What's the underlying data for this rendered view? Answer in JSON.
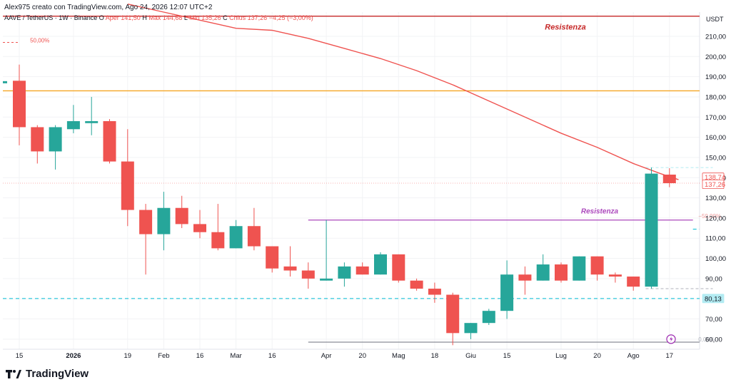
{
  "header": {
    "author_line": "Alex975 creato con TradingView.com, Ago 24, 2026 12:07 UTC+2",
    "symbol": "AAVE / TetherUS · 1W · Binance",
    "ohlc": [
      {
        "label": "O",
        "value": "Aper 141,50"
      },
      {
        "label": "H",
        "value": "Max 144,68"
      },
      {
        "label": "L",
        "value": "Min 135,26"
      },
      {
        "label": "C",
        "value": "Chius 137,26"
      },
      {
        "label": "",
        "value": "−4,25 (−3,00%)"
      }
    ]
  },
  "branding": {
    "logo_text": "TradingView"
  },
  "colors": {
    "up": "#26a69a",
    "down": "#ef5350",
    "ma": "#ef5350",
    "orange_level": "#f5a623",
    "resistance_red": "#c62828",
    "resistance_purple": "#ab47bc",
    "support_dash": "#00bcd4",
    "grid": "#f2f3f5"
  },
  "chart_data": {
    "type": "candlestick",
    "quote_currency": "USDT",
    "ylim": [
      55,
      222
    ],
    "y_ticks": [
      "60,00",
      "70,00",
      "80,00",
      "90,00",
      "100,00",
      "110,00",
      "120,00",
      "130,00",
      "140,00",
      "150,00",
      "160,00",
      "170,00",
      "180,00",
      "190,00",
      "200,00",
      "210,00"
    ],
    "y_ticks_values": [
      60,
      70,
      80,
      90,
      100,
      110,
      120,
      130,
      140,
      150,
      160,
      170,
      180,
      190,
      200,
      210
    ],
    "x_labels": [
      {
        "i": 0,
        "text": "15",
        "bold": false
      },
      {
        "i": 3,
        "text": "2026",
        "bold": true
      },
      {
        "i": 6,
        "text": "19",
        "bold": false
      },
      {
        "i": 8,
        "text": "Feb",
        "bold": false
      },
      {
        "i": 10,
        "text": "16",
        "bold": false
      },
      {
        "i": 12,
        "text": "Mar",
        "bold": false
      },
      {
        "i": 14,
        "text": "16",
        "bold": false
      },
      {
        "i": 17,
        "text": "Apr",
        "bold": false
      },
      {
        "i": 19,
        "text": "20",
        "bold": false
      },
      {
        "i": 21,
        "text": "Mag",
        "bold": false
      },
      {
        "i": 23,
        "text": "18",
        "bold": false
      },
      {
        "i": 25,
        "text": "Giu",
        "bold": false
      },
      {
        "i": 27,
        "text": "15",
        "bold": false
      },
      {
        "i": 30,
        "text": "Lug",
        "bold": false
      },
      {
        "i": 32,
        "text": "20",
        "bold": false
      },
      {
        "i": 34,
        "text": "Ago",
        "bold": false
      },
      {
        "i": 36,
        "text": "17",
        "bold": false
      }
    ],
    "candles": [
      {
        "o": 188,
        "h": 196,
        "l": 156,
        "c": 165
      },
      {
        "o": 165,
        "h": 166,
        "l": 147,
        "c": 153
      },
      {
        "o": 153,
        "h": 166,
        "l": 144,
        "c": 165
      },
      {
        "o": 164,
        "h": 176,
        "l": 162,
        "c": 168
      },
      {
        "o": 167,
        "h": 180,
        "l": 161,
        "c": 168
      },
      {
        "o": 168,
        "h": 169,
        "l": 147,
        "c": 148
      },
      {
        "o": 148,
        "h": 164,
        "l": 116,
        "c": 124
      },
      {
        "o": 124,
        "h": 127,
        "l": 92,
        "c": 112
      },
      {
        "o": 112,
        "h": 133,
        "l": 104,
        "c": 125
      },
      {
        "o": 125,
        "h": 131,
        "l": 115,
        "c": 117
      },
      {
        "o": 117,
        "h": 124,
        "l": 110,
        "c": 113
      },
      {
        "o": 113,
        "h": 127,
        "l": 104,
        "c": 105
      },
      {
        "o": 105,
        "h": 119,
        "l": 105,
        "c": 116
      },
      {
        "o": 116,
        "h": 125,
        "l": 104,
        "c": 106
      },
      {
        "o": 106,
        "h": 106,
        "l": 93,
        "c": 95
      },
      {
        "o": 96,
        "h": 106,
        "l": 91,
        "c": 94
      },
      {
        "o": 94,
        "h": 98,
        "l": 85,
        "c": 90
      },
      {
        "o": 89,
        "h": 119,
        "l": 89,
        "c": 90
      },
      {
        "o": 90,
        "h": 98,
        "l": 86,
        "c": 96
      },
      {
        "o": 96,
        "h": 98,
        "l": 92,
        "c": 92
      },
      {
        "o": 92,
        "h": 103,
        "l": 92,
        "c": 102
      },
      {
        "o": 102,
        "h": 102,
        "l": 88,
        "c": 89
      },
      {
        "o": 89,
        "h": 90,
        "l": 84,
        "c": 85
      },
      {
        "o": 85,
        "h": 88,
        "l": 78,
        "c": 82
      },
      {
        "o": 82,
        "h": 83,
        "l": 57,
        "c": 63
      },
      {
        "o": 63,
        "h": 68,
        "l": 60,
        "c": 68
      },
      {
        "o": 68,
        "h": 75,
        "l": 67,
        "c": 74
      },
      {
        "o": 74,
        "h": 99,
        "l": 70,
        "c": 92
      },
      {
        "o": 92,
        "h": 96,
        "l": 82,
        "c": 89
      },
      {
        "o": 89,
        "h": 102,
        "l": 89,
        "c": 97
      },
      {
        "o": 97,
        "h": 98,
        "l": 88,
        "c": 89
      },
      {
        "o": 89,
        "h": 101,
        "l": 89,
        "c": 101
      },
      {
        "o": 101,
        "h": 101,
        "l": 89,
        "c": 92
      },
      {
        "o": 92,
        "h": 93,
        "l": 88,
        "c": 91
      },
      {
        "o": 91,
        "h": 91,
        "l": 84,
        "c": 86
      },
      {
        "o": 86,
        "h": 145,
        "l": 85,
        "c": 142
      },
      {
        "o": 141.5,
        "h": 144.68,
        "l": 135.26,
        "c": 137.26
      }
    ],
    "moving_average": [
      {
        "i": 6,
        "v": 226
      },
      {
        "i": 8,
        "v": 222
      },
      {
        "i": 10,
        "v": 218
      },
      {
        "i": 12,
        "v": 214
      },
      {
        "i": 14,
        "v": 213
      },
      {
        "i": 16,
        "v": 209
      },
      {
        "i": 18,
        "v": 204
      },
      {
        "i": 20,
        "v": 199
      },
      {
        "i": 22,
        "v": 193
      },
      {
        "i": 24,
        "v": 186
      },
      {
        "i": 26,
        "v": 178
      },
      {
        "i": 28,
        "v": 170
      },
      {
        "i": 30,
        "v": 162
      },
      {
        "i": 32,
        "v": 155
      },
      {
        "i": 34,
        "v": 147
      },
      {
        "i": 35.5,
        "v": 142
      },
      {
        "i": 36.5,
        "v": 139
      }
    ],
    "levels": [
      {
        "name": "resistance-top",
        "price": 220,
        "color": "#c62828",
        "label": "Resistenza",
        "style": "solid",
        "from_i": -1,
        "to_i": 40
      },
      {
        "name": "orange-level",
        "price": 183,
        "color": "#f5a623",
        "label": "",
        "style": "solid",
        "from_i": -1,
        "to_i": 40
      },
      {
        "name": "resistance-purple",
        "price": 119,
        "color": "#ab47bc",
        "label": "Resistenza",
        "style": "solid",
        "from_i": 16,
        "to_i": 37.3
      },
      {
        "name": "support-80",
        "price": 80.13,
        "color": "#00bcd4",
        "label": "",
        "style": "dashed",
        "from_i": -1,
        "to_i": 40
      },
      {
        "name": "cyan-114",
        "price": 114.5,
        "color": "#00bcd4",
        "label": "",
        "style": "dashed",
        "from_i": 37.3,
        "to_i": 38.3
      },
      {
        "name": "gray-58",
        "price": 58.5,
        "color": "#9598a1",
        "label": "",
        "style": "solid",
        "from_i": 16,
        "to_i": 38
      }
    ],
    "fib_labels": [
      {
        "text": "50,00%",
        "price": 208,
        "i": 0.6,
        "color": "#ef5350"
      },
      {
        "text": "−50,00%",
        "price": 121,
        "i": 37.6,
        "color": "#ef9a9a"
      },
      {
        "text": "0,00%",
        "price": 60,
        "i": 37.6,
        "color": "#b0b3bb"
      }
    ],
    "price_tags": [
      {
        "text": "138,74",
        "price": 140.2,
        "bg": "#ffffff",
        "fg": "#ef5350",
        "border": "#ef5350"
      },
      {
        "text": "137,26",
        "price": 136.7,
        "bg": "#ffffff",
        "fg": "#ef5350",
        "border": "#ef5350"
      },
      {
        "text": "80,13",
        "price": 80.13,
        "bg": "#b2ebf2",
        "fg": "#131722",
        "border": "#b2ebf2"
      }
    ],
    "last_close": 137.26
  }
}
